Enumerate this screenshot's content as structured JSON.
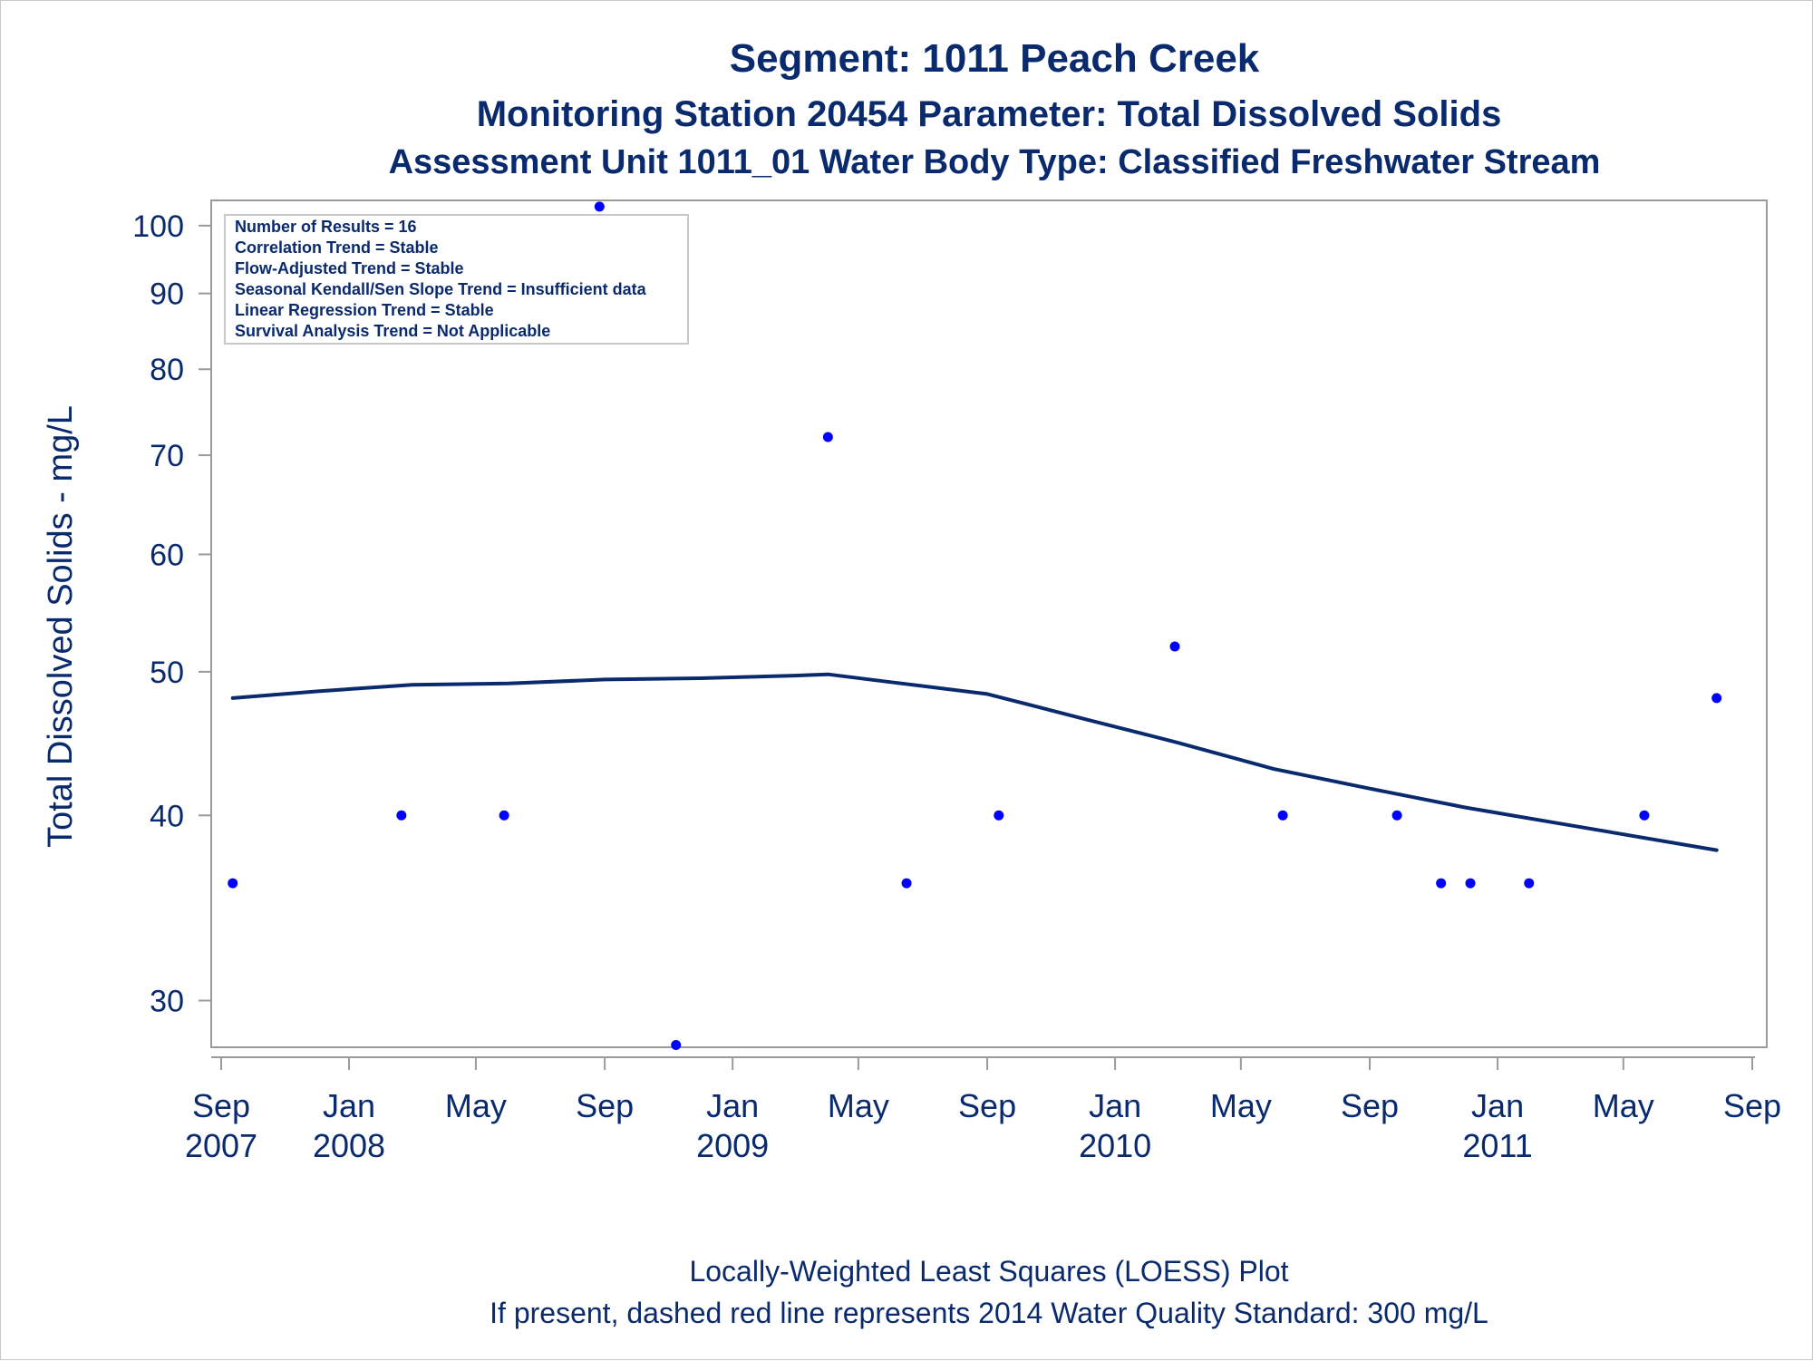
{
  "title": "Segment: 1011  Peach Creek",
  "subtitle": "Monitoring Station 20454 Parameter: Total Dissolved Solids",
  "subtitle2": "Assessment Unit 1011_01   Water Body Type: Classified Freshwater Stream",
  "stats": [
    "Number of Results = 16",
    "Correlation Trend = Stable",
    "Flow-Adjusted Trend = Stable",
    "Seasonal Kendall/Sen Slope Trend = Insufficient data",
    "Linear Regression Trend = Stable",
    "Survival Analysis Trend = Not Applicable"
  ],
  "footnotes": [
    "Locally-Weighted Least Squares (LOESS) Plot",
    "If present, dashed red line represents 2014 Water Quality Standard: 300   mg/L"
  ],
  "colors": {
    "text": "#0a2a6e",
    "points": "#0000ff",
    "loess": "#0a2a6e",
    "axis": "#9a9a9a"
  },
  "chart_data": {
    "type": "scatter",
    "ylabel": "Total Dissolved Solids - mg/L",
    "y_scale": "log",
    "ylim": [
      27.9,
      104
    ],
    "y_ticks": [
      30,
      40,
      50,
      60,
      70,
      80,
      90,
      100
    ],
    "xlim": [
      "2007-09-01",
      "2011-09-01"
    ],
    "x_ticks": [
      {
        "date": "2007-09-01",
        "month": "Sep",
        "year": "2007"
      },
      {
        "date": "2008-01-01",
        "month": "Jan",
        "year": "2008"
      },
      {
        "date": "2008-05-01",
        "month": "May",
        "year": ""
      },
      {
        "date": "2008-09-01",
        "month": "Sep",
        "year": ""
      },
      {
        "date": "2009-01-01",
        "month": "Jan",
        "year": "2009"
      },
      {
        "date": "2009-05-01",
        "month": "May",
        "year": ""
      },
      {
        "date": "2009-09-01",
        "month": "Sep",
        "year": ""
      },
      {
        "date": "2010-01-01",
        "month": "Jan",
        "year": "2010"
      },
      {
        "date": "2010-05-01",
        "month": "May",
        "year": ""
      },
      {
        "date": "2010-09-01",
        "month": "Sep",
        "year": ""
      },
      {
        "date": "2011-01-01",
        "month": "Jan",
        "year": "2011"
      },
      {
        "date": "2011-05-01",
        "month": "May",
        "year": ""
      },
      {
        "date": "2011-09-01",
        "month": "Sep",
        "year": ""
      }
    ],
    "points": [
      {
        "x": "2007-09-12",
        "y": 36
      },
      {
        "x": "2008-02-20",
        "y": 40
      },
      {
        "x": "2008-05-28",
        "y": 40
      },
      {
        "x": "2008-08-27",
        "y": 103
      },
      {
        "x": "2008-11-08",
        "y": 28
      },
      {
        "x": "2009-04-02",
        "y": 72
      },
      {
        "x": "2009-06-16",
        "y": 36
      },
      {
        "x": "2009-09-12",
        "y": 40
      },
      {
        "x": "2010-02-27",
        "y": 52
      },
      {
        "x": "2010-06-10",
        "y": 40
      },
      {
        "x": "2010-09-27",
        "y": 40
      },
      {
        "x": "2010-11-08",
        "y": 36
      },
      {
        "x": "2010-12-06",
        "y": 36
      },
      {
        "x": "2011-01-31",
        "y": 36
      },
      {
        "x": "2011-05-21",
        "y": 40
      },
      {
        "x": "2011-07-29",
        "y": 48
      }
    ],
    "loess": [
      {
        "x": "2007-09-12",
        "y": 48.0
      },
      {
        "x": "2007-12-01",
        "y": 48.5
      },
      {
        "x": "2008-03-01",
        "y": 49.0
      },
      {
        "x": "2008-06-01",
        "y": 49.1
      },
      {
        "x": "2008-09-01",
        "y": 49.4
      },
      {
        "x": "2008-12-01",
        "y": 49.5
      },
      {
        "x": "2009-03-01",
        "y": 49.7
      },
      {
        "x": "2009-04-02",
        "y": 49.8
      },
      {
        "x": "2009-06-01",
        "y": 49.2
      },
      {
        "x": "2009-09-01",
        "y": 48.3
      },
      {
        "x": "2009-12-01",
        "y": 46.5
      },
      {
        "x": "2010-03-01",
        "y": 44.8
      },
      {
        "x": "2010-06-01",
        "y": 43.0
      },
      {
        "x": "2010-09-01",
        "y": 41.7
      },
      {
        "x": "2010-12-01",
        "y": 40.5
      },
      {
        "x": "2011-03-01",
        "y": 39.5
      },
      {
        "x": "2011-07-29",
        "y": 37.9
      }
    ]
  }
}
